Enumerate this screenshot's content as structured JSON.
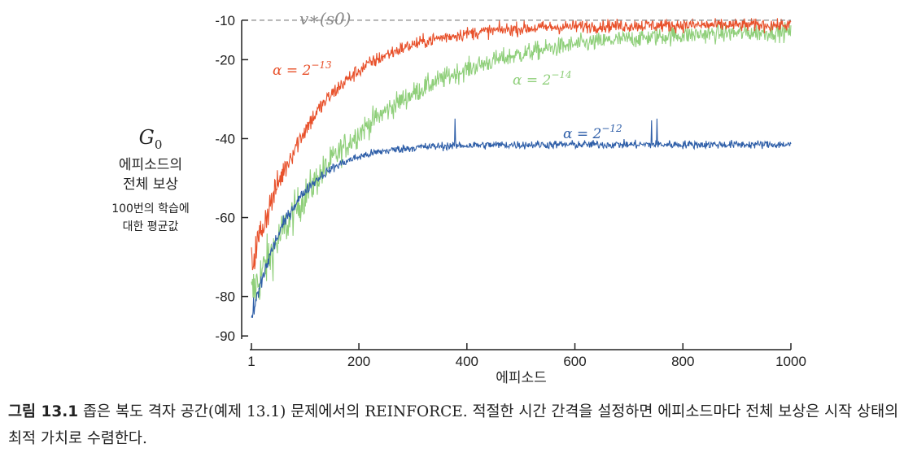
{
  "chart_data": {
    "type": "line",
    "reference_label": "v∗(s0)",
    "reference_value": -11.6,
    "y_axis": {
      "title": "G0",
      "subtitle_lines": [
        "에피소드의",
        "전체 보상"
      ],
      "note_lines": [
        "100번의 학습에",
        "대한 평균값"
      ],
      "ticks": [
        -10,
        -20,
        -40,
        -60,
        -80,
        -90
      ],
      "ylim": [
        -91,
        -9
      ]
    },
    "x_axis": {
      "label": "에피소드",
      "ticks": [
        1,
        200,
        400,
        600,
        800,
        1000
      ],
      "xlim": [
        1,
        1000
      ]
    },
    "series": [
      {
        "name": "α = 2^-13",
        "label_base": "α = 2",
        "label_exp": "−13",
        "color": "#e8502a",
        "start": -72,
        "end": -11.2,
        "tau": 120,
        "noise": 1.6
      },
      {
        "name": "α = 2^-14",
        "label_base": "α = 2",
        "label_exp": "−14",
        "color": "#8fcf7a",
        "start": -80,
        "end": -12.3,
        "tau": 210,
        "noise": 2.2
      },
      {
        "name": "α = 2^-12",
        "label_base": "α = 2",
        "label_exp": "−12",
        "color": "#2e5ea8",
        "start": -86,
        "end": -41.5,
        "tau": 75,
        "noise": 1.0
      }
    ]
  },
  "caption": {
    "figure_label": "그림 13.1",
    "text": " 좁은 복도 격자 공간(예제 13.1) 문제에서의 REINFORCE. 적절한 시간 간격을 설정하면 에피소드마다 전체 보상은 시작 상태의 최적 가치로 수렴한다."
  }
}
